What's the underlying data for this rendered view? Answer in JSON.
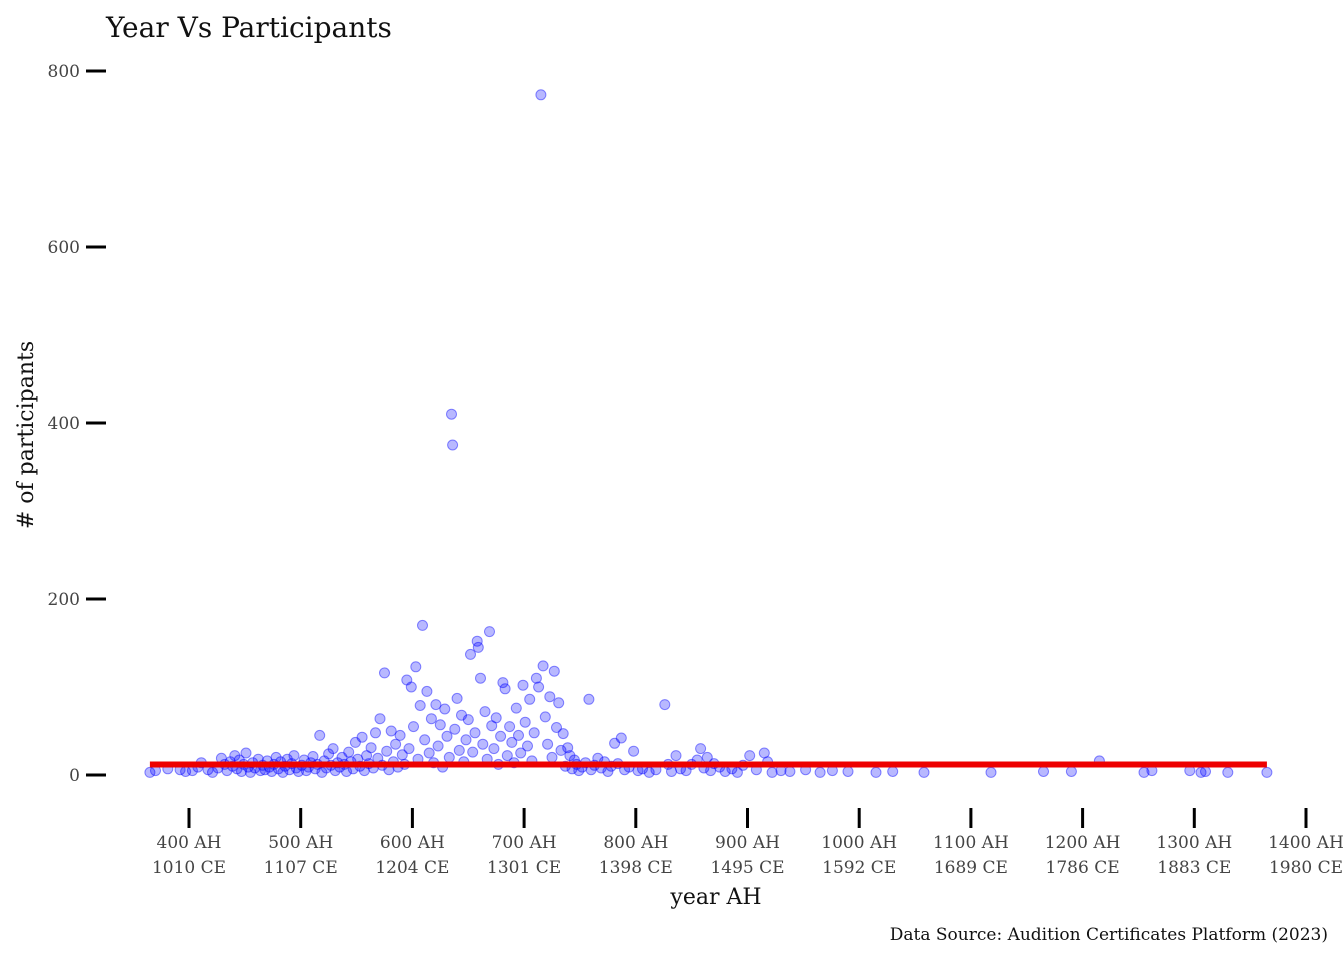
{
  "chart_data": {
    "type": "scatter",
    "title": "Year Vs Participants",
    "xlabel": "year AH",
    "ylabel": "# of participants",
    "caption": "Data Source: Audition Certificates Platform (2023)",
    "xlim": [
      375,
      1400
    ],
    "ylim": [
      -25,
      815
    ],
    "x_ticks": [
      {
        "value": 400,
        "label_ah": "400 AH",
        "label_ce": "1010 CE"
      },
      {
        "value": 500,
        "label_ah": "500 AH",
        "label_ce": "1107 CE"
      },
      {
        "value": 600,
        "label_ah": "600 AH",
        "label_ce": "1204 CE"
      },
      {
        "value": 700,
        "label_ah": "700 AH",
        "label_ce": "1301 CE"
      },
      {
        "value": 800,
        "label_ah": "800 AH",
        "label_ce": "1398 CE"
      },
      {
        "value": 900,
        "label_ah": "900 AH",
        "label_ce": "1495 CE"
      },
      {
        "value": 1000,
        "label_ah": "1000 AH",
        "label_ce": "1592 CE"
      },
      {
        "value": 1100,
        "label_ah": "1100 AH",
        "label_ce": "1689 CE"
      },
      {
        "value": 1200,
        "label_ah": "1200 AH",
        "label_ce": "1786 CE"
      },
      {
        "value": 1300,
        "label_ah": "1300 AH",
        "label_ce": "1883 CE"
      },
      {
        "value": 1400,
        "label_ah": "1400 AH",
        "label_ce": "1980 CE"
      }
    ],
    "y_ticks": [
      {
        "value": 0,
        "label": "0"
      },
      {
        "value": 200,
        "label": "200"
      },
      {
        "value": 400,
        "label": "400"
      },
      {
        "value": 600,
        "label": "600"
      },
      {
        "value": 800,
        "label": "800"
      }
    ],
    "grid": false,
    "point_color": "#0000ff",
    "point_opacity": 0.28,
    "trend_color": "#ee0000",
    "trend_line": {
      "x": [
        365,
        1365
      ],
      "y": [
        12,
        12
      ]
    },
    "points": [
      [
        365,
        3
      ],
      [
        370,
        5
      ],
      [
        381,
        7
      ],
      [
        392,
        6
      ],
      [
        397,
        4
      ],
      [
        403,
        5
      ],
      [
        408,
        9
      ],
      [
        411,
        14
      ],
      [
        417,
        6
      ],
      [
        421,
        3
      ],
      [
        426,
        8
      ],
      [
        429,
        19
      ],
      [
        432,
        12
      ],
      [
        434,
        5
      ],
      [
        437,
        15
      ],
      [
        439,
        10
      ],
      [
        441,
        22
      ],
      [
        443,
        7
      ],
      [
        445,
        17
      ],
      [
        447,
        4
      ],
      [
        449,
        12
      ],
      [
        451,
        25
      ],
      [
        453,
        9
      ],
      [
        455,
        3
      ],
      [
        457,
        14
      ],
      [
        459,
        8
      ],
      [
        462,
        18
      ],
      [
        464,
        5
      ],
      [
        466,
        11
      ],
      [
        468,
        6
      ],
      [
        470,
        16
      ],
      [
        472,
        9
      ],
      [
        474,
        4
      ],
      [
        476,
        12
      ],
      [
        478,
        20
      ],
      [
        480,
        7
      ],
      [
        482,
        15
      ],
      [
        484,
        3
      ],
      [
        486,
        10
      ],
      [
        488,
        18
      ],
      [
        490,
        6
      ],
      [
        492,
        13
      ],
      [
        494,
        22
      ],
      [
        496,
        8
      ],
      [
        498,
        4
      ],
      [
        501,
        11
      ],
      [
        503,
        17
      ],
      [
        505,
        5
      ],
      [
        507,
        9
      ],
      [
        509,
        14
      ],
      [
        511,
        21
      ],
      [
        513,
        7
      ],
      [
        515,
        12
      ],
      [
        517,
        45
      ],
      [
        519,
        3
      ],
      [
        521,
        16
      ],
      [
        523,
        8
      ],
      [
        525,
        24
      ],
      [
        527,
        11
      ],
      [
        529,
        30
      ],
      [
        531,
        5
      ],
      [
        533,
        14
      ],
      [
        535,
        9
      ],
      [
        537,
        20
      ],
      [
        539,
        12
      ],
      [
        541,
        4
      ],
      [
        543,
        26
      ],
      [
        545,
        15
      ],
      [
        547,
        7
      ],
      [
        549,
        37
      ],
      [
        551,
        18
      ],
      [
        553,
        10
      ],
      [
        555,
        43
      ],
      [
        557,
        5
      ],
      [
        559,
        22
      ],
      [
        561,
        13
      ],
      [
        563,
        31
      ],
      [
        565,
        8
      ],
      [
        567,
        48
      ],
      [
        569,
        19
      ],
      [
        571,
        64
      ],
      [
        573,
        11
      ],
      [
        575,
        116
      ],
      [
        577,
        27
      ],
      [
        579,
        6
      ],
      [
        581,
        50
      ],
      [
        583,
        15
      ],
      [
        585,
        35
      ],
      [
        587,
        9
      ],
      [
        589,
        45
      ],
      [
        591,
        23
      ],
      [
        593,
        12
      ],
      [
        595,
        108
      ],
      [
        597,
        30
      ],
      [
        599,
        100
      ],
      [
        601,
        55
      ],
      [
        603,
        123
      ],
      [
        605,
        18
      ],
      [
        607,
        79
      ],
      [
        609,
        170
      ],
      [
        611,
        40
      ],
      [
        613,
        95
      ],
      [
        615,
        25
      ],
      [
        617,
        64
      ],
      [
        619,
        14
      ],
      [
        621,
        80
      ],
      [
        623,
        33
      ],
      [
        625,
        57
      ],
      [
        627,
        9
      ],
      [
        629,
        75
      ],
      [
        631,
        44
      ],
      [
        633,
        20
      ],
      [
        635,
        410
      ],
      [
        636,
        375
      ],
      [
        638,
        52
      ],
      [
        640,
        87
      ],
      [
        642,
        28
      ],
      [
        644,
        68
      ],
      [
        646,
        15
      ],
      [
        648,
        40
      ],
      [
        650,
        63
      ],
      [
        652,
        137
      ],
      [
        654,
        26
      ],
      [
        656,
        48
      ],
      [
        658,
        152
      ],
      [
        659,
        145
      ],
      [
        661,
        110
      ],
      [
        663,
        35
      ],
      [
        665,
        72
      ],
      [
        667,
        18
      ],
      [
        669,
        163
      ],
      [
        671,
        56
      ],
      [
        673,
        30
      ],
      [
        675,
        65
      ],
      [
        677,
        12
      ],
      [
        679,
        44
      ],
      [
        681,
        105
      ],
      [
        683,
        98
      ],
      [
        685,
        22
      ],
      [
        687,
        55
      ],
      [
        689,
        37
      ],
      [
        691,
        14
      ],
      [
        693,
        76
      ],
      [
        695,
        45
      ],
      [
        697,
        25
      ],
      [
        699,
        102
      ],
      [
        701,
        60
      ],
      [
        703,
        33
      ],
      [
        705,
        86
      ],
      [
        707,
        16
      ],
      [
        709,
        48
      ],
      [
        711,
        110
      ],
      [
        713,
        100
      ],
      [
        715,
        773
      ],
      [
        717,
        124
      ],
      [
        719,
        66
      ],
      [
        721,
        35
      ],
      [
        723,
        89
      ],
      [
        725,
        20
      ],
      [
        727,
        118
      ],
      [
        729,
        54
      ],
      [
        731,
        82
      ],
      [
        733,
        28
      ],
      [
        735,
        47
      ],
      [
        737,
        10
      ],
      [
        739,
        31
      ],
      [
        741,
        22
      ],
      [
        743,
        7
      ],
      [
        745,
        17
      ],
      [
        747,
        12
      ],
      [
        749,
        5
      ],
      [
        752,
        9
      ],
      [
        755,
        14
      ],
      [
        758,
        86
      ],
      [
        760,
        6
      ],
      [
        763,
        11
      ],
      [
        766,
        19
      ],
      [
        769,
        8
      ],
      [
        772,
        15
      ],
      [
        775,
        4
      ],
      [
        778,
        10
      ],
      [
        781,
        36
      ],
      [
        784,
        13
      ],
      [
        787,
        42
      ],
      [
        790,
        6
      ],
      [
        794,
        9
      ],
      [
        798,
        27
      ],
      [
        802,
        5
      ],
      [
        806,
        7
      ],
      [
        812,
        3
      ],
      [
        818,
        6
      ],
      [
        826,
        80
      ],
      [
        829,
        12
      ],
      [
        832,
        4
      ],
      [
        836,
        22
      ],
      [
        840,
        7
      ],
      [
        845,
        5
      ],
      [
        850,
        12
      ],
      [
        855,
        17
      ],
      [
        858,
        30
      ],
      [
        861,
        8
      ],
      [
        864,
        20
      ],
      [
        867,
        5
      ],
      [
        870,
        13
      ],
      [
        875,
        9
      ],
      [
        880,
        4
      ],
      [
        886,
        7
      ],
      [
        891,
        3
      ],
      [
        896,
        11
      ],
      [
        902,
        22
      ],
      [
        908,
        6
      ],
      [
        915,
        25
      ],
      [
        918,
        15
      ],
      [
        922,
        3
      ],
      [
        930,
        5
      ],
      [
        938,
        4
      ],
      [
        952,
        6
      ],
      [
        965,
        3
      ],
      [
        976,
        5
      ],
      [
        990,
        4
      ],
      [
        1015,
        3
      ],
      [
        1030,
        4
      ],
      [
        1058,
        3
      ],
      [
        1118,
        3
      ],
      [
        1165,
        4
      ],
      [
        1190,
        4
      ],
      [
        1215,
        16
      ],
      [
        1255,
        3
      ],
      [
        1262,
        5
      ],
      [
        1296,
        5
      ],
      [
        1306,
        3
      ],
      [
        1310,
        4
      ],
      [
        1330,
        3
      ],
      [
        1365,
        3
      ]
    ]
  }
}
